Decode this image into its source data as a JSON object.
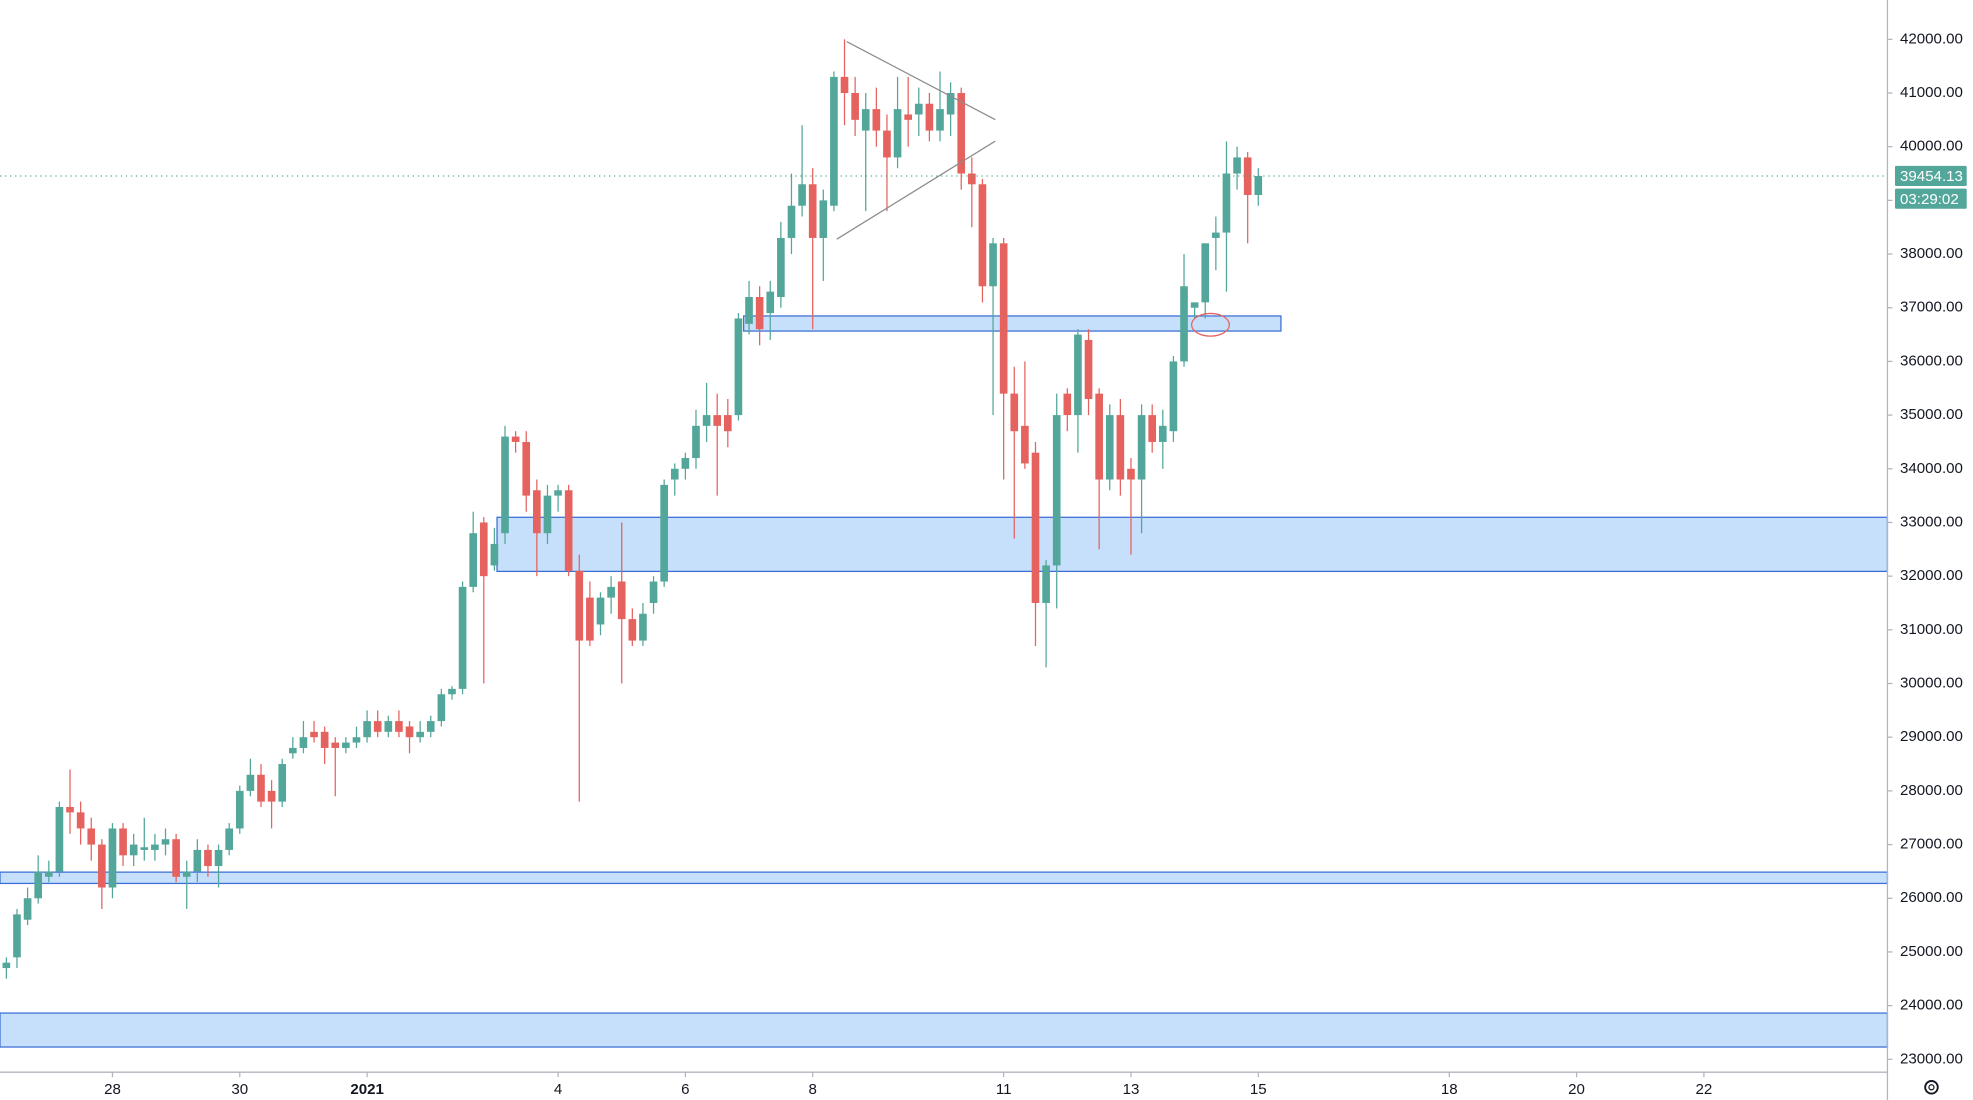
{
  "chart_data": {
    "type": "candlestick",
    "candles": {
      "open": [
        24700,
        24900,
        25600,
        26000,
        26400,
        26500,
        27700,
        27600,
        27300,
        27000,
        26200,
        27300,
        26800,
        26900,
        26900,
        27000,
        27100,
        26400,
        26500,
        26900,
        26600,
        26900,
        27300,
        28000,
        28300,
        28000,
        27800,
        28700,
        28800,
        29100,
        29100,
        28900,
        28800,
        28900,
        29000,
        29300,
        29100,
        29300,
        29200,
        29000,
        29100,
        29300,
        29800,
        29900,
        31800,
        33000,
        32200,
        32800,
        34600,
        34500,
        33600,
        32800,
        33500,
        33600,
        32100,
        31600,
        31100,
        31600,
        31900,
        31200,
        30800,
        31500,
        31900,
        33800,
        34000,
        34200,
        34800,
        35000,
        35000,
        35000,
        36700,
        37200,
        36900,
        37200,
        38300,
        38900,
        39300,
        38300,
        38900,
        41300,
        41000,
        40300,
        40700,
        40300,
        39800,
        40600,
        40600,
        40800,
        40300,
        40600,
        41000,
        39500,
        39300,
        37400,
        38200,
        35400,
        34800,
        34300,
        31500,
        32200,
        35400,
        35000,
        36400,
        35400,
        33800,
        35000,
        34000,
        33800,
        35000,
        34500,
        34700,
        36000,
        37000,
        37100,
        38300,
        38400,
        39500,
        39800,
        39100
      ],
      "high": [
        24900,
        25800,
        26200,
        26800,
        26700,
        27800,
        28400,
        27800,
        27500,
        27100,
        27400,
        27400,
        27200,
        27500,
        27200,
        27300,
        27200,
        26700,
        27100,
        27000,
        27000,
        27400,
        28100,
        28600,
        28500,
        28200,
        28600,
        29000,
        29300,
        29300,
        29200,
        29000,
        29000,
        29200,
        29500,
        29500,
        29400,
        29500,
        29300,
        29300,
        29400,
        29900,
        29950,
        31900,
        33200,
        33100,
        32900,
        34800,
        34700,
        34700,
        33800,
        33700,
        33700,
        33700,
        32400,
        31900,
        31700,
        32000,
        33000,
        31400,
        31500,
        32000,
        33800,
        34100,
        34300,
        35100,
        35600,
        35400,
        35300,
        36900,
        37500,
        37400,
        37500,
        38600,
        39500,
        40400,
        39600,
        39200,
        41400,
        42000,
        41300,
        41000,
        41100,
        40600,
        41300,
        41300,
        41100,
        41000,
        41400,
        41200,
        41100,
        39800,
        39400,
        38300,
        38300,
        35900,
        36000,
        34500,
        32300,
        35400,
        35500,
        36600,
        36600,
        35500,
        35200,
        35300,
        34200,
        35200,
        35200,
        35100,
        36100,
        38000,
        37100,
        38200,
        38700,
        40100,
        40000,
        39900,
        39600
      ],
      "low": [
        24500,
        24700,
        25500,
        25900,
        26300,
        26400,
        27200,
        27000,
        26700,
        25800,
        26000,
        26600,
        26600,
        26700,
        26700,
        26800,
        26300,
        25800,
        26300,
        26400,
        26200,
        26800,
        27200,
        27900,
        27700,
        27300,
        27700,
        28600,
        28700,
        28900,
        28500,
        27900,
        28700,
        28800,
        28900,
        29000,
        29000,
        29000,
        28700,
        28900,
        29000,
        29200,
        29700,
        29800,
        31700,
        30000,
        32100,
        32600,
        34300,
        33200,
        32000,
        32600,
        33200,
        32000,
        27800,
        30700,
        30900,
        31300,
        30000,
        30700,
        30700,
        31300,
        31800,
        33500,
        33800,
        34000,
        34500,
        33500,
        34400,
        34900,
        36500,
        36300,
        36400,
        37000,
        38000,
        38700,
        36600,
        37500,
        38800,
        40400,
        40200,
        38800,
        40000,
        38800,
        39600,
        40000,
        40200,
        40100,
        40100,
        40200,
        39200,
        38500,
        37100,
        35000,
        33800,
        32700,
        34000,
        30700,
        30300,
        31400,
        34700,
        34300,
        35000,
        32500,
        33600,
        33500,
        32400,
        32800,
        34300,
        34000,
        34500,
        35900,
        36800,
        36800,
        37700,
        37300,
        39200,
        38200,
        38900
      ],
      "close": [
        24800,
        25700,
        26000,
        26500,
        26500,
        27700,
        27600,
        27300,
        27000,
        26200,
        27300,
        26800,
        27000,
        26950,
        27000,
        27100,
        26400,
        26500,
        26900,
        26600,
        26900,
        27300,
        28000,
        28300,
        27800,
        27800,
        28500,
        28800,
        29000,
        29000,
        28800,
        28800,
        28900,
        29000,
        29300,
        29100,
        29300,
        29100,
        29000,
        29100,
        29300,
        29800,
        29900,
        31800,
        32800,
        32000,
        32600,
        34600,
        34500,
        33500,
        32800,
        33500,
        33600,
        32100,
        30800,
        30800,
        31600,
        31800,
        31200,
        30800,
        31300,
        31900,
        33700,
        34000,
        34200,
        34800,
        35000,
        34800,
        34700,
        36800,
        37200,
        36600,
        37300,
        38300,
        38900,
        39300,
        38300,
        39000,
        41300,
        41000,
        40500,
        40700,
        40300,
        39800,
        40700,
        40500,
        40800,
        40300,
        40700,
        41000,
        39500,
        39300,
        37400,
        38200,
        35400,
        34700,
        34100,
        31500,
        32200,
        35000,
        35000,
        36500,
        35300,
        33800,
        35000,
        33800,
        33800,
        35000,
        34500,
        34800,
        36000,
        37400,
        37100,
        38200,
        38400,
        39500,
        39800,
        39100,
        39454.13
      ]
    },
    "colors": {
      "up": "#53a69a",
      "down": "#e5625e"
    },
    "ylim": [
      22760,
      42730
    ],
    "yticks": [
      {
        "value": 23000,
        "label": "23000.00"
      },
      {
        "value": 24000,
        "label": "24000.00"
      },
      {
        "value": 25000,
        "label": "25000.00"
      },
      {
        "value": 26000,
        "label": "26000.00"
      },
      {
        "value": 27000,
        "label": "27000.00"
      },
      {
        "value": 28000,
        "label": "28000.00"
      },
      {
        "value": 29000,
        "label": "29000.00"
      },
      {
        "value": 30000,
        "label": "30000.00"
      },
      {
        "value": 31000,
        "label": "31000.00"
      },
      {
        "value": 32000,
        "label": "32000.00"
      },
      {
        "value": 33000,
        "label": "33000.00"
      },
      {
        "value": 34000,
        "label": "34000.00"
      },
      {
        "value": 35000,
        "label": "35000.00"
      },
      {
        "value": 36000,
        "label": "36000.00"
      },
      {
        "value": 37000,
        "label": "37000.00"
      },
      {
        "value": 38000,
        "label": "38000.00"
      },
      {
        "value": 39000,
        "label": "39000.00"
      },
      {
        "value": 40000,
        "label": "40000.00"
      },
      {
        "value": 41000,
        "label": "41000.00"
      },
      {
        "value": 42000,
        "label": "42000.00"
      }
    ],
    "xlim": [
      -0.6,
      177.3
    ],
    "xticks": [
      {
        "value": 10,
        "label": "28"
      },
      {
        "value": 22,
        "label": "30"
      },
      {
        "value": 34,
        "label": "2021"
      },
      {
        "value": 52,
        "label": "4"
      },
      {
        "value": 64,
        "label": "6"
      },
      {
        "value": 76,
        "label": "8"
      },
      {
        "value": 94,
        "label": "11"
      },
      {
        "value": 106,
        "label": "13"
      },
      {
        "value": 118,
        "label": "15"
      },
      {
        "value": 136,
        "label": "18"
      },
      {
        "value": 148,
        "label": "20"
      },
      {
        "value": 160,
        "label": "22"
      }
    ],
    "last_price": 39454.13,
    "countdown": "03:29:02"
  }
}
